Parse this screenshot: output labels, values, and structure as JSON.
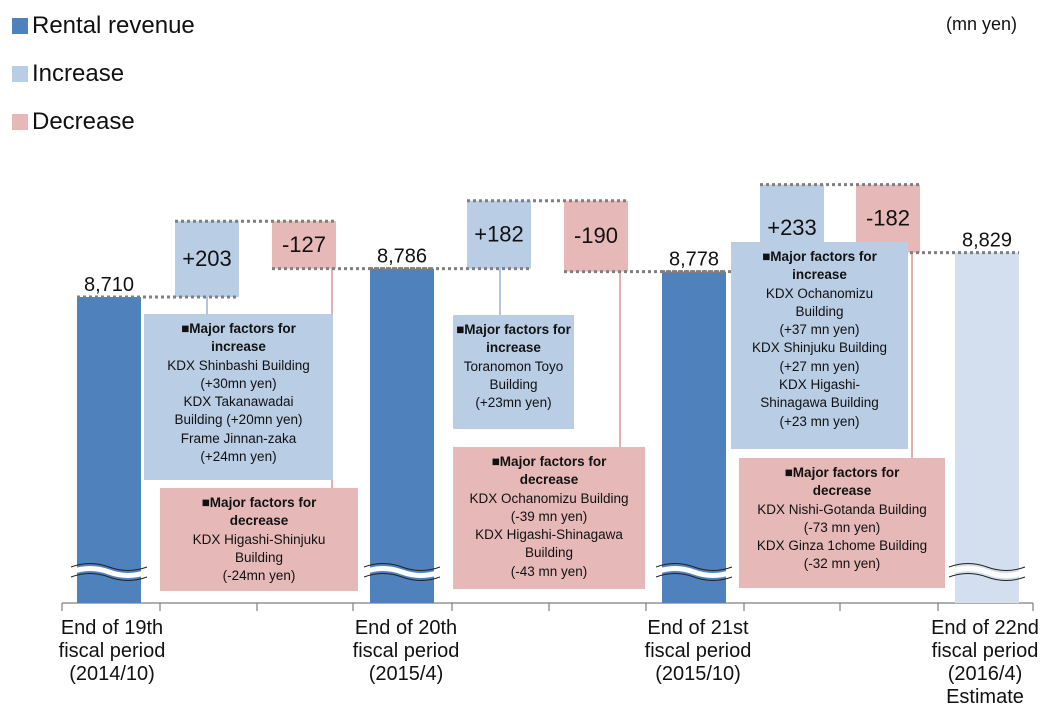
{
  "legend": {
    "rental": "Rental revenue",
    "increase": "Increase",
    "decrease": "Decrease"
  },
  "unit": "(mn yen)",
  "colors": {
    "rental": "#4f81bd",
    "estimate": "#d3dfee",
    "increase": "#b9cde5",
    "decrease": "#e6b9b8",
    "axis": "#7f7f7f",
    "dotted": "#7f7f7f"
  },
  "chart_data": {
    "type": "bar",
    "subtype": "waterfall",
    "axis_break": true,
    "categories": [
      "End of 19th fiscal period (2014/10)",
      "End of 20th fiscal period (2015/4)",
      "End of 21st fiscal period (2015/10)",
      "End of 22nd fiscal period (2016/4) Estimate"
    ],
    "totals": [
      {
        "label": "8,710",
        "value": 8710
      },
      {
        "label": "8,786",
        "value": 8786
      },
      {
        "label": "8,778",
        "value": 8778
      },
      {
        "label": "8,829",
        "value": 8829,
        "estimate": true
      }
    ],
    "increases": [
      {
        "label": "+203",
        "value": 203
      },
      {
        "label": "+182",
        "value": 182
      },
      {
        "label": "+233",
        "value": 233
      }
    ],
    "decreases": [
      {
        "label": "-127",
        "value": -127
      },
      {
        "label": "-190",
        "value": -190
      },
      {
        "label": "-182",
        "value": -182
      }
    ]
  },
  "axis_labels": [
    [
      "End of 19th",
      "fiscal period",
      "(2014/10)"
    ],
    [
      "End of 20th",
      "fiscal period",
      "(2015/4)"
    ],
    [
      "End of 21st",
      "fiscal period",
      "(2015/10)"
    ],
    [
      "End of 22nd",
      "fiscal period",
      "(2016/4)",
      "Estimate"
    ]
  ],
  "factors": {
    "p1_increase": {
      "title": [
        "■Major factors for",
        "increase"
      ],
      "lines": [
        "KDX Shinbashi Building",
        "(+30mn yen)",
        "KDX Takanawadai",
        "Building (+20mn yen)",
        "Frame Jinnan-zaka",
        "(+24mn yen)"
      ]
    },
    "p1_decrease": {
      "title": [
        "■Major factors for",
        "decrease"
      ],
      "lines": [
        "KDX Higashi-Shinjuku",
        "Building",
        "(-24mn yen)"
      ]
    },
    "p2_increase": {
      "title": [
        "■Major factors for",
        "increase"
      ],
      "lines": [
        "Toranomon Toyo",
        "Building",
        "(+23mn yen)"
      ]
    },
    "p2_decrease": {
      "title": [
        "■Major factors for",
        "decrease"
      ],
      "lines": [
        "KDX Ochanomizu Building",
        "(-39 mn yen)",
        "KDX Higashi-Shinagawa",
        "Building",
        "(-43 mn yen)"
      ]
    },
    "p3_increase": {
      "title": [
        "■Major factors for",
        "increase"
      ],
      "lines": [
        "KDX Ochanomizu",
        "Building",
        "(+37 mn yen)",
        "KDX Shinjuku Building",
        "(+27 mn yen)",
        "KDX Higashi-",
        "Shinagawa Building",
        "(+23 mn yen)"
      ]
    },
    "p3_decrease": {
      "title": [
        "■Major factors for",
        "decrease"
      ],
      "lines": [
        "KDX Nishi-Gotanda Building",
        "(-73 mn yen)",
        "KDX Ginza 1chome Building",
        "(-32 mn yen)"
      ]
    }
  }
}
